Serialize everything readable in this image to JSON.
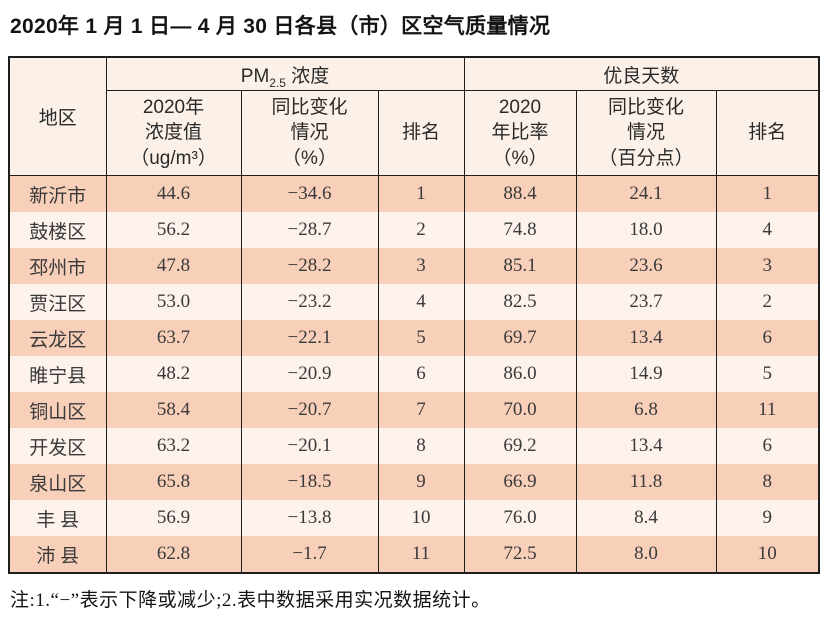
{
  "chart_data": {
    "type": "table",
    "title": "2020年 1 月 1 日— 4 月 30 日各县（市）区空气质量情况",
    "note": "注:1.“−”表示下降或减少;2.表中数据采用实况数据统计。",
    "headers": {
      "region": "地区",
      "pm_group_main": "PM",
      "pm_group_sub": "2.5",
      "pm_group_rest": " 浓度",
      "good_group": "优良天数",
      "pm_value": "2020年\n浓度值\n（ug/m³）",
      "pm_change": "同比变化\n情况\n（%）",
      "pm_rank": "排名",
      "good_rate": "2020\n年比率\n（%）",
      "good_change": "同比变化\n情况\n（百分点）",
      "good_rank": "排名"
    },
    "rows": [
      {
        "region": "新沂市",
        "pm_value": "44.6",
        "pm_change": "−34.6",
        "pm_rank": "1",
        "good_rate": "88.4",
        "good_change": "24.1",
        "good_rank": "1"
      },
      {
        "region": "鼓楼区",
        "pm_value": "56.2",
        "pm_change": "−28.7",
        "pm_rank": "2",
        "good_rate": "74.8",
        "good_change": "18.0",
        "good_rank": "4"
      },
      {
        "region": "邳州市",
        "pm_value": "47.8",
        "pm_change": "−28.2",
        "pm_rank": "3",
        "good_rate": "85.1",
        "good_change": "23.6",
        "good_rank": "3"
      },
      {
        "region": "贾汪区",
        "pm_value": "53.0",
        "pm_change": "−23.2",
        "pm_rank": "4",
        "good_rate": "82.5",
        "good_change": "23.7",
        "good_rank": "2"
      },
      {
        "region": "云龙区",
        "pm_value": "63.7",
        "pm_change": "−22.1",
        "pm_rank": "5",
        "good_rate": "69.7",
        "good_change": "13.4",
        "good_rank": "6"
      },
      {
        "region": "睢宁县",
        "pm_value": "48.2",
        "pm_change": "−20.9",
        "pm_rank": "6",
        "good_rate": "86.0",
        "good_change": "14.9",
        "good_rank": "5"
      },
      {
        "region": "铜山区",
        "pm_value": "58.4",
        "pm_change": "−20.7",
        "pm_rank": "7",
        "good_rate": "70.0",
        "good_change": "6.8",
        "good_rank": "11"
      },
      {
        "region": "开发区",
        "pm_value": "63.2",
        "pm_change": "−20.1",
        "pm_rank": "8",
        "good_rate": "69.2",
        "good_change": "13.4",
        "good_rank": "6"
      },
      {
        "region": "泉山区",
        "pm_value": "65.8",
        "pm_change": "−18.5",
        "pm_rank": "9",
        "good_rate": "66.9",
        "good_change": "11.8",
        "good_rank": "8"
      },
      {
        "region": "丰 县",
        "pm_value": "56.9",
        "pm_change": "−13.8",
        "pm_rank": "10",
        "good_rate": "76.0",
        "good_change": "8.4",
        "good_rank": "9"
      },
      {
        "region": "沛 县",
        "pm_value": "62.8",
        "pm_change": "−1.7",
        "pm_rank": "11",
        "good_rate": "72.5",
        "good_change": "8.0",
        "good_rank": "10"
      }
    ],
    "colors": {
      "row_stripe_dark": "#f8d0ba",
      "row_stripe_light": "#fdf2ec",
      "header_background": "#fbf1e9",
      "grid_border": "#1e1e1e",
      "text": "#3a3a3a"
    },
    "layout": {
      "grid": "black 1px column rules, no horizontal rules between body rows",
      "stripes": "odd rows peach, even rows near-white pink"
    }
  }
}
